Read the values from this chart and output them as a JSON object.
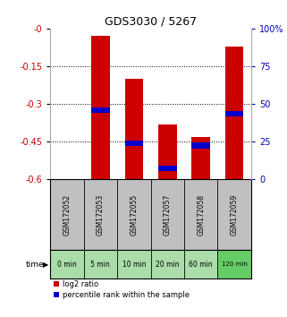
{
  "title": "GDS3030 / 5267",
  "samples": [
    "GSM172052",
    "GSM172053",
    "GSM172055",
    "GSM172057",
    "GSM172058",
    "GSM172059"
  ],
  "time_labels": [
    "0 min",
    "5 min",
    "10 min",
    "20 min",
    "60 min",
    "120 min"
  ],
  "log2_ratio_top": [
    0,
    -0.03,
    -0.2,
    -0.38,
    -0.43,
    -0.07
  ],
  "log2_ratio_bottom": [
    0,
    -0.61,
    -0.61,
    -0.61,
    -0.61,
    -0.61
  ],
  "percentile_rank": [
    null,
    -0.325,
    -0.455,
    -0.555,
    -0.465,
    -0.34
  ],
  "ylim_left": [
    -0.6,
    0
  ],
  "ylim_right": [
    0,
    100
  ],
  "yticks_left": [
    0,
    -0.15,
    -0.3,
    -0.45,
    -0.6
  ],
  "yticks_left_labels": [
    "-0",
    "-0.15",
    "-0.3",
    "-0.45",
    "-0.6"
  ],
  "yticks_right": [
    0,
    25,
    50,
    75,
    100
  ],
  "yticks_right_labels": [
    "0",
    "25",
    "50",
    "75",
    "100%"
  ],
  "bar_color": "#cc0000",
  "percentile_color": "#0000cc",
  "grid_color": "#000000",
  "bg_color": "#ffffff",
  "label_bg": "#c0c0c0",
  "time_bg_light": "#aaddaa",
  "time_bg_dark": "#66cc66",
  "left_axis_color": "#cc0000",
  "right_axis_color": "#0000bb",
  "bar_width": 0.55,
  "pct_bar_height": 0.022,
  "legend_log2": "log2 ratio",
  "legend_pct": "percentile rank within the sample",
  "gridlines": [
    -0.15,
    -0.3,
    -0.45
  ]
}
